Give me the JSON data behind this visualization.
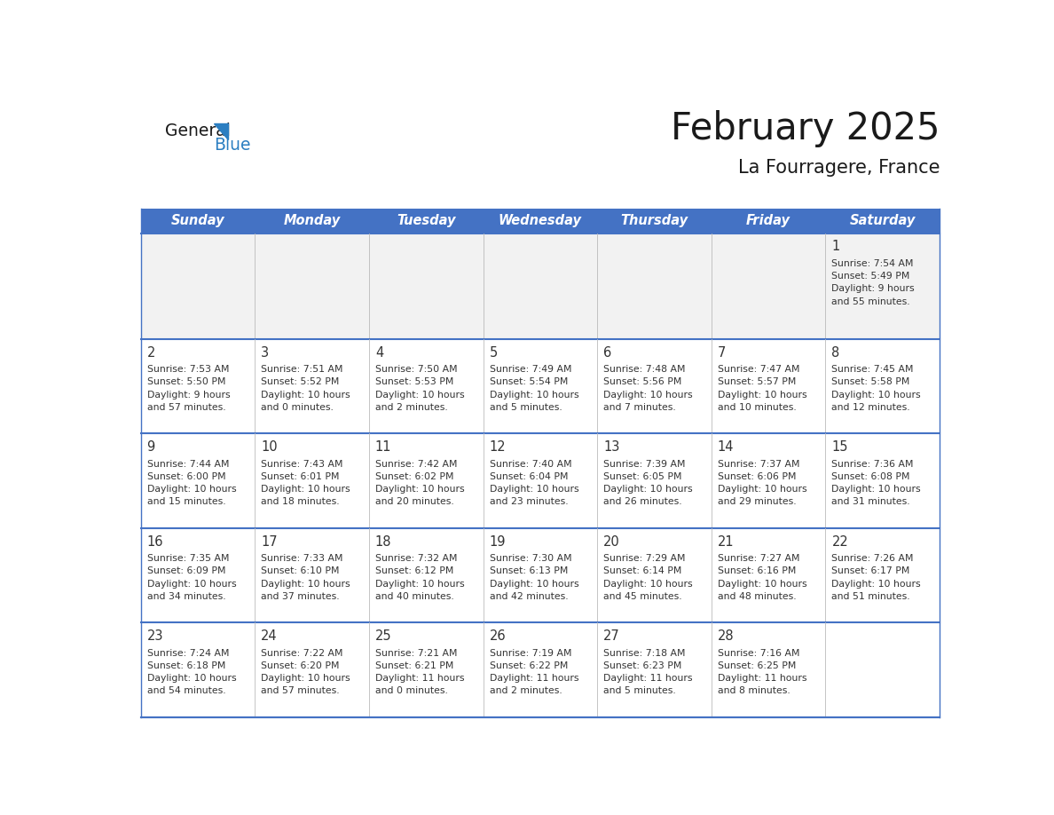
{
  "title": "February 2025",
  "subtitle": "La Fourragere, France",
  "days_of_week": [
    "Sunday",
    "Monday",
    "Tuesday",
    "Wednesday",
    "Thursday",
    "Friday",
    "Saturday"
  ],
  "header_bg": "#4472C4",
  "header_text": "#FFFFFF",
  "row_bg": "#FFFFFF",
  "row1_bg": "#F2F2F2",
  "cell_border_color": "#4472C4",
  "day_number_color": "#333333",
  "info_text_color": "#333333",
  "background": "#FFFFFF",
  "logo_general_color": "#1a1a1a",
  "logo_blue_color": "#2B7EC1",
  "logo_triangle_color": "#2B7EC1",
  "calendar": [
    [
      null,
      null,
      null,
      null,
      null,
      null,
      {
        "day": 1,
        "sunrise": "7:54 AM",
        "sunset": "5:49 PM",
        "daylight": "9 hours\nand 55 minutes."
      }
    ],
    [
      {
        "day": 2,
        "sunrise": "7:53 AM",
        "sunset": "5:50 PM",
        "daylight": "9 hours\nand 57 minutes."
      },
      {
        "day": 3,
        "sunrise": "7:51 AM",
        "sunset": "5:52 PM",
        "daylight": "10 hours\nand 0 minutes."
      },
      {
        "day": 4,
        "sunrise": "7:50 AM",
        "sunset": "5:53 PM",
        "daylight": "10 hours\nand 2 minutes."
      },
      {
        "day": 5,
        "sunrise": "7:49 AM",
        "sunset": "5:54 PM",
        "daylight": "10 hours\nand 5 minutes."
      },
      {
        "day": 6,
        "sunrise": "7:48 AM",
        "sunset": "5:56 PM",
        "daylight": "10 hours\nand 7 minutes."
      },
      {
        "day": 7,
        "sunrise": "7:47 AM",
        "sunset": "5:57 PM",
        "daylight": "10 hours\nand 10 minutes."
      },
      {
        "day": 8,
        "sunrise": "7:45 AM",
        "sunset": "5:58 PM",
        "daylight": "10 hours\nand 12 minutes."
      }
    ],
    [
      {
        "day": 9,
        "sunrise": "7:44 AM",
        "sunset": "6:00 PM",
        "daylight": "10 hours\nand 15 minutes."
      },
      {
        "day": 10,
        "sunrise": "7:43 AM",
        "sunset": "6:01 PM",
        "daylight": "10 hours\nand 18 minutes."
      },
      {
        "day": 11,
        "sunrise": "7:42 AM",
        "sunset": "6:02 PM",
        "daylight": "10 hours\nand 20 minutes."
      },
      {
        "day": 12,
        "sunrise": "7:40 AM",
        "sunset": "6:04 PM",
        "daylight": "10 hours\nand 23 minutes."
      },
      {
        "day": 13,
        "sunrise": "7:39 AM",
        "sunset": "6:05 PM",
        "daylight": "10 hours\nand 26 minutes."
      },
      {
        "day": 14,
        "sunrise": "7:37 AM",
        "sunset": "6:06 PM",
        "daylight": "10 hours\nand 29 minutes."
      },
      {
        "day": 15,
        "sunrise": "7:36 AM",
        "sunset": "6:08 PM",
        "daylight": "10 hours\nand 31 minutes."
      }
    ],
    [
      {
        "day": 16,
        "sunrise": "7:35 AM",
        "sunset": "6:09 PM",
        "daylight": "10 hours\nand 34 minutes."
      },
      {
        "day": 17,
        "sunrise": "7:33 AM",
        "sunset": "6:10 PM",
        "daylight": "10 hours\nand 37 minutes."
      },
      {
        "day": 18,
        "sunrise": "7:32 AM",
        "sunset": "6:12 PM",
        "daylight": "10 hours\nand 40 minutes."
      },
      {
        "day": 19,
        "sunrise": "7:30 AM",
        "sunset": "6:13 PM",
        "daylight": "10 hours\nand 42 minutes."
      },
      {
        "day": 20,
        "sunrise": "7:29 AM",
        "sunset": "6:14 PM",
        "daylight": "10 hours\nand 45 minutes."
      },
      {
        "day": 21,
        "sunrise": "7:27 AM",
        "sunset": "6:16 PM",
        "daylight": "10 hours\nand 48 minutes."
      },
      {
        "day": 22,
        "sunrise": "7:26 AM",
        "sunset": "6:17 PM",
        "daylight": "10 hours\nand 51 minutes."
      }
    ],
    [
      {
        "day": 23,
        "sunrise": "7:24 AM",
        "sunset": "6:18 PM",
        "daylight": "10 hours\nand 54 minutes."
      },
      {
        "day": 24,
        "sunrise": "7:22 AM",
        "sunset": "6:20 PM",
        "daylight": "10 hours\nand 57 minutes."
      },
      {
        "day": 25,
        "sunrise": "7:21 AM",
        "sunset": "6:21 PM",
        "daylight": "11 hours\nand 0 minutes."
      },
      {
        "day": 26,
        "sunrise": "7:19 AM",
        "sunset": "6:22 PM",
        "daylight": "11 hours\nand 2 minutes."
      },
      {
        "day": 27,
        "sunrise": "7:18 AM",
        "sunset": "6:23 PM",
        "daylight": "11 hours\nand 5 minutes."
      },
      {
        "day": 28,
        "sunrise": "7:16 AM",
        "sunset": "6:25 PM",
        "daylight": "11 hours\nand 8 minutes."
      },
      null
    ]
  ]
}
